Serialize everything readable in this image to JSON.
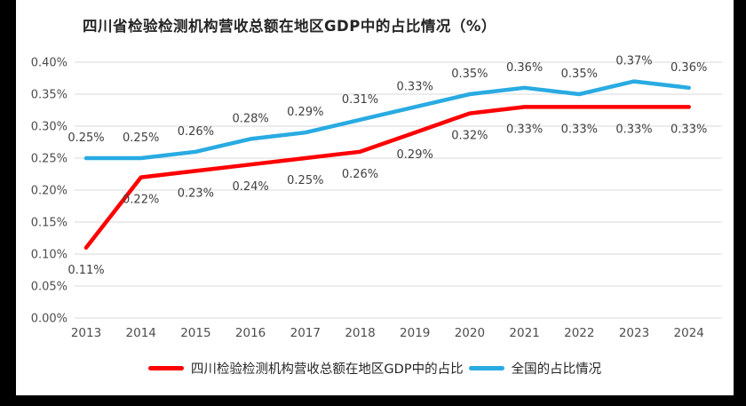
{
  "chart_data": {
    "type": "line",
    "title": "四川省检验检测机构营收总额在地区GDP中的占比情况（%）",
    "categories": [
      "2013",
      "2014",
      "2015",
      "2016",
      "2017",
      "2018",
      "2019",
      "2020",
      "2021",
      "2022",
      "2023",
      "2024"
    ],
    "series": [
      {
        "name": "四川检验检测机构营收总额在地区GDP中的占比",
        "color": "#ff0000",
        "values": [
          0.11,
          0.22,
          0.23,
          0.24,
          0.25,
          0.26,
          0.29,
          0.32,
          0.33,
          0.33,
          0.33,
          0.33
        ],
        "labels": [
          "0.11%",
          "0.22%",
          "0.23%",
          "0.24%",
          "0.25%",
          "0.26%",
          "0.29%",
          "0.32%",
          "0.33%",
          "0.33%",
          "0.33%",
          "0.33%"
        ],
        "label_position": "below"
      },
      {
        "name": "全国的占比情况",
        "color": "#29abe2",
        "values": [
          0.25,
          0.25,
          0.26,
          0.28,
          0.29,
          0.31,
          0.33,
          0.35,
          0.36,
          0.35,
          0.37,
          0.36
        ],
        "labels": [
          "0.25%",
          "0.25%",
          "0.26%",
          "0.28%",
          "0.29%",
          "0.31%",
          "0.33%",
          "0.35%",
          "0.36%",
          "0.35%",
          "0.37%",
          "0.36%"
        ],
        "label_position": "above"
      }
    ],
    "y_axis": {
      "ticks": [
        "0.00%",
        "0.05%",
        "0.10%",
        "0.15%",
        "0.20%",
        "0.25%",
        "0.30%",
        "0.35%",
        "0.40%"
      ],
      "min": 0.0,
      "max": 0.4,
      "step": 0.05
    },
    "xlabel": "",
    "ylabel": "",
    "grid": true,
    "legend_position": "bottom"
  }
}
